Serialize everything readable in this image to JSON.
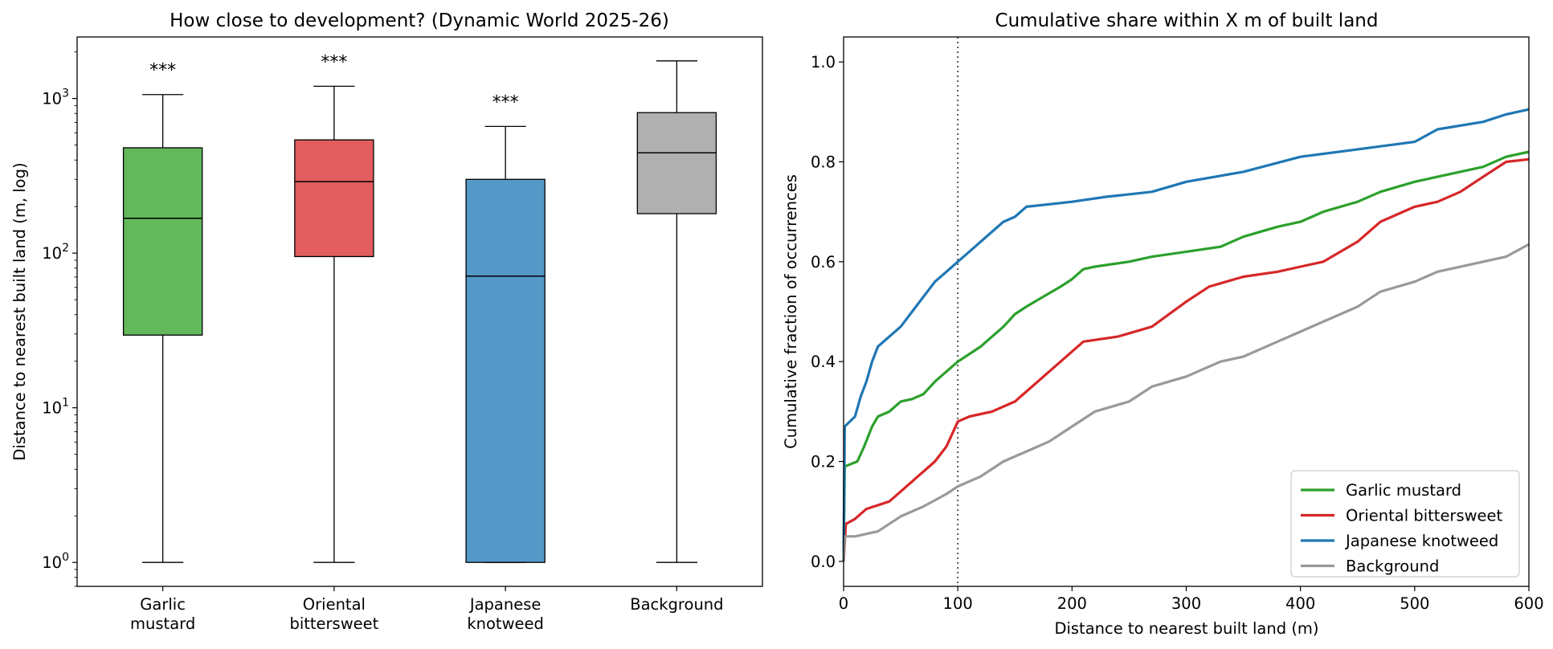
{
  "chart_data": [
    {
      "type": "box",
      "title": "How close to development? (Dynamic World 2025-26)",
      "xlabel": "",
      "ylabel": "Distance to nearest built land (m, log)",
      "yscale": "log",
      "ylim": [
        0.7,
        2500
      ],
      "yticks": [
        {
          "value": 1,
          "base": "10",
          "exp": "0"
        },
        {
          "value": 10,
          "base": "10",
          "exp": "1"
        },
        {
          "value": 100,
          "base": "10",
          "exp": "2"
        },
        {
          "value": 1000,
          "base": "10",
          "exp": "3"
        }
      ],
      "categories": [
        {
          "lines": [
            "Garlic",
            "mustard"
          ],
          "color": "#62b85b",
          "whisker_low": 1,
          "q1": 29.5,
          "median": 168,
          "q3": 480,
          "whisker_high": 1060,
          "annotation": "***"
        },
        {
          "lines": [
            "Oriental",
            "bittersweet"
          ],
          "color": "#e15d5e",
          "whisker_low": 1,
          "q1": 95,
          "median": 290,
          "q3": 540,
          "whisker_high": 1200,
          "annotation": "***"
        },
        {
          "lines": [
            "Japanese",
            "knotweed"
          ],
          "color": "#5499c7",
          "whisker_low": 1,
          "q1": 1,
          "median": 71,
          "q3": 300,
          "whisker_high": 660,
          "annotation": "***"
        },
        {
          "lines": [
            "Background"
          ],
          "color": "#b0b0b0",
          "whisker_low": 1,
          "q1": 180,
          "median": 445,
          "q3": 810,
          "whisker_high": 1750,
          "annotation": ""
        }
      ]
    },
    {
      "type": "line",
      "title": "Cumulative share within X m of built land",
      "xlabel": "Distance to nearest built land (m)",
      "ylabel": "Cumulative fraction of occurrences",
      "xlim": [
        0,
        600
      ],
      "ylim": [
        -0.05,
        1.05
      ],
      "xticks": [
        0,
        100,
        200,
        300,
        400,
        500,
        600
      ],
      "yticks": [
        0.0,
        0.2,
        0.4,
        0.6,
        0.8,
        1.0
      ],
      "reference_line_x": 100,
      "legend_position": "lower-right",
      "series": [
        {
          "name": "Garlic mustard",
          "color": "#2ca02c",
          "x": [
            0,
            1,
            12,
            18,
            25,
            30,
            40,
            50,
            60,
            70,
            80,
            90,
            100,
            110,
            120,
            130,
            140,
            150,
            160,
            175,
            190,
            200,
            210,
            220,
            250,
            270,
            300,
            330,
            350,
            380,
            400,
            420,
            450,
            470,
            500,
            520,
            560,
            580,
            600
          ],
          "y": [
            0.0,
            0.19,
            0.2,
            0.23,
            0.27,
            0.29,
            0.3,
            0.32,
            0.325,
            0.335,
            0.36,
            0.38,
            0.4,
            0.415,
            0.43,
            0.45,
            0.47,
            0.495,
            0.51,
            0.53,
            0.55,
            0.565,
            0.585,
            0.59,
            0.6,
            0.61,
            0.62,
            0.63,
            0.65,
            0.67,
            0.68,
            0.7,
            0.72,
            0.74,
            0.76,
            0.77,
            0.79,
            0.81,
            0.82
          ]
        },
        {
          "name": "Oriental bittersweet",
          "color": "#d62728",
          "x": [
            0,
            2,
            10,
            20,
            40,
            50,
            60,
            70,
            80,
            90,
            100,
            110,
            120,
            130,
            140,
            150,
            160,
            175,
            190,
            200,
            210,
            240,
            270,
            300,
            320,
            350,
            380,
            400,
            420,
            450,
            470,
            500,
            520,
            540,
            560,
            580,
            600
          ],
          "y": [
            0.0,
            0.075,
            0.085,
            0.105,
            0.12,
            0.14,
            0.16,
            0.18,
            0.2,
            0.23,
            0.28,
            0.29,
            0.295,
            0.3,
            0.31,
            0.32,
            0.34,
            0.37,
            0.4,
            0.42,
            0.44,
            0.45,
            0.47,
            0.52,
            0.55,
            0.57,
            0.58,
            0.59,
            0.6,
            0.64,
            0.68,
            0.71,
            0.72,
            0.74,
            0.77,
            0.8,
            0.805
          ]
        },
        {
          "name": "Japanese knotweed",
          "color": "#1f77b4",
          "x": [
            0,
            1,
            10,
            15,
            20,
            25,
            30,
            40,
            50,
            60,
            70,
            80,
            90,
            100,
            110,
            120,
            130,
            140,
            150,
            160,
            180,
            200,
            230,
            270,
            300,
            350,
            400,
            450,
            500,
            520,
            560,
            580,
            600
          ],
          "y": [
            0.0,
            0.27,
            0.29,
            0.33,
            0.36,
            0.4,
            0.43,
            0.45,
            0.47,
            0.5,
            0.53,
            0.56,
            0.58,
            0.6,
            0.62,
            0.64,
            0.66,
            0.68,
            0.69,
            0.71,
            0.715,
            0.72,
            0.73,
            0.74,
            0.76,
            0.78,
            0.81,
            0.825,
            0.84,
            0.865,
            0.88,
            0.895,
            0.905
          ]
        },
        {
          "name": "Background",
          "color": "#999999",
          "x": [
            0,
            1,
            10,
            30,
            50,
            70,
            90,
            100,
            120,
            140,
            160,
            180,
            200,
            220,
            250,
            270,
            300,
            330,
            350,
            380,
            400,
            420,
            450,
            470,
            500,
            520,
            560,
            580,
            600
          ],
          "y": [
            0.0,
            0.05,
            0.05,
            0.06,
            0.09,
            0.11,
            0.135,
            0.15,
            0.17,
            0.2,
            0.22,
            0.24,
            0.27,
            0.3,
            0.32,
            0.35,
            0.37,
            0.4,
            0.41,
            0.44,
            0.46,
            0.48,
            0.51,
            0.54,
            0.56,
            0.58,
            0.6,
            0.61,
            0.635
          ]
        }
      ]
    }
  ]
}
